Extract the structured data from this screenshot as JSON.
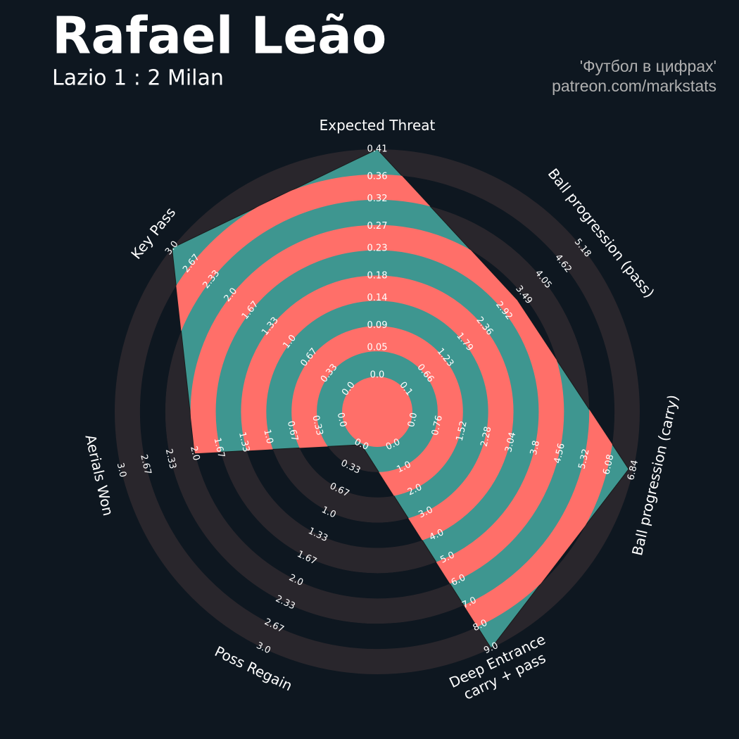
{
  "chart_data": {
    "type": "radar",
    "title": "Rafael Leão",
    "subtitle": "Lazio 1 : 2 Milan",
    "credits": [
      "'Футбол в цифрах'",
      "patreon.com/markstats"
    ],
    "params": [
      {
        "name": "Expected Threat",
        "lim": [
          0,
          0.41
        ],
        "ticks": [
          {
            "value": 0,
            "label": "0.0"
          },
          0.05,
          0.09,
          0.14,
          0.18,
          0.23,
          0.27,
          0.32,
          0.36,
          0.41
        ]
      },
      {
        "name": "Ball progression (pass)",
        "lim": [
          0.1,
          5.18
        ],
        "ticks": [
          0.1,
          0.66,
          1.23,
          1.79,
          2.36,
          2.92,
          3.49,
          4.05,
          4.62,
          5.18
        ]
      },
      {
        "name": "Ball progression (carry)",
        "lim": [
          0,
          6.84
        ],
        "ticks": [
          {
            "value": 0,
            "label": "0.0"
          },
          0.76,
          1.52,
          2.28,
          3.04,
          3.8,
          4.56,
          5.32,
          6.08,
          6.84
        ]
      },
      {
        "name": "Deep Entrance\ncarry + pass",
        "lim": [
          0,
          9
        ],
        "ticks": [
          {
            "value": 0,
            "label": "0.0"
          },
          {
            "value": 1,
            "label": "1.0"
          },
          {
            "value": 2,
            "label": "2.0"
          },
          {
            "value": 3,
            "label": "3.0"
          },
          {
            "value": 4,
            "label": "4.0"
          },
          {
            "value": 5,
            "label": "5.0"
          },
          {
            "value": 6,
            "label": "6.0"
          },
          {
            "value": 7,
            "label": "7.0"
          },
          {
            "value": 8,
            "label": "8.0"
          },
          {
            "value": 9,
            "label": "9.0"
          }
        ]
      },
      {
        "name": "Poss Regain",
        "lim": [
          0,
          3
        ],
        "ticks": [
          {
            "value": 0,
            "label": "0.0"
          },
          0.33,
          0.67,
          {
            "value": 1,
            "label": "1.0"
          },
          1.33,
          1.67,
          {
            "value": 2,
            "label": "2.0"
          },
          2.33,
          2.67,
          {
            "value": 3,
            "label": "3.0"
          }
        ]
      },
      {
        "name": "Aerials Won",
        "lim": [
          0,
          3
        ],
        "ticks": [
          {
            "value": 0,
            "label": "0.0"
          },
          0.33,
          0.67,
          {
            "value": 1,
            "label": "1.0"
          },
          1.33,
          1.67,
          {
            "value": 2,
            "label": "2.0"
          },
          2.33,
          2.67,
          {
            "value": 3,
            "label": "3.0"
          }
        ]
      },
      {
        "name": "Key Pass",
        "lim": [
          0,
          3
        ],
        "ticks": [
          {
            "value": 0,
            "label": "0.0"
          },
          0.33,
          0.67,
          {
            "value": 1,
            "label": "1.0"
          },
          1.33,
          1.67,
          {
            "value": 2,
            "label": "2.0"
          },
          2.33,
          2.67,
          {
            "value": 3,
            "label": "3.0"
          }
        ]
      }
    ],
    "values": [
      0.41,
      3.3,
      6.7,
      9,
      0,
      2,
      3
    ],
    "color": "#3e9690",
    "ring_color": "#ff6f69"
  }
}
